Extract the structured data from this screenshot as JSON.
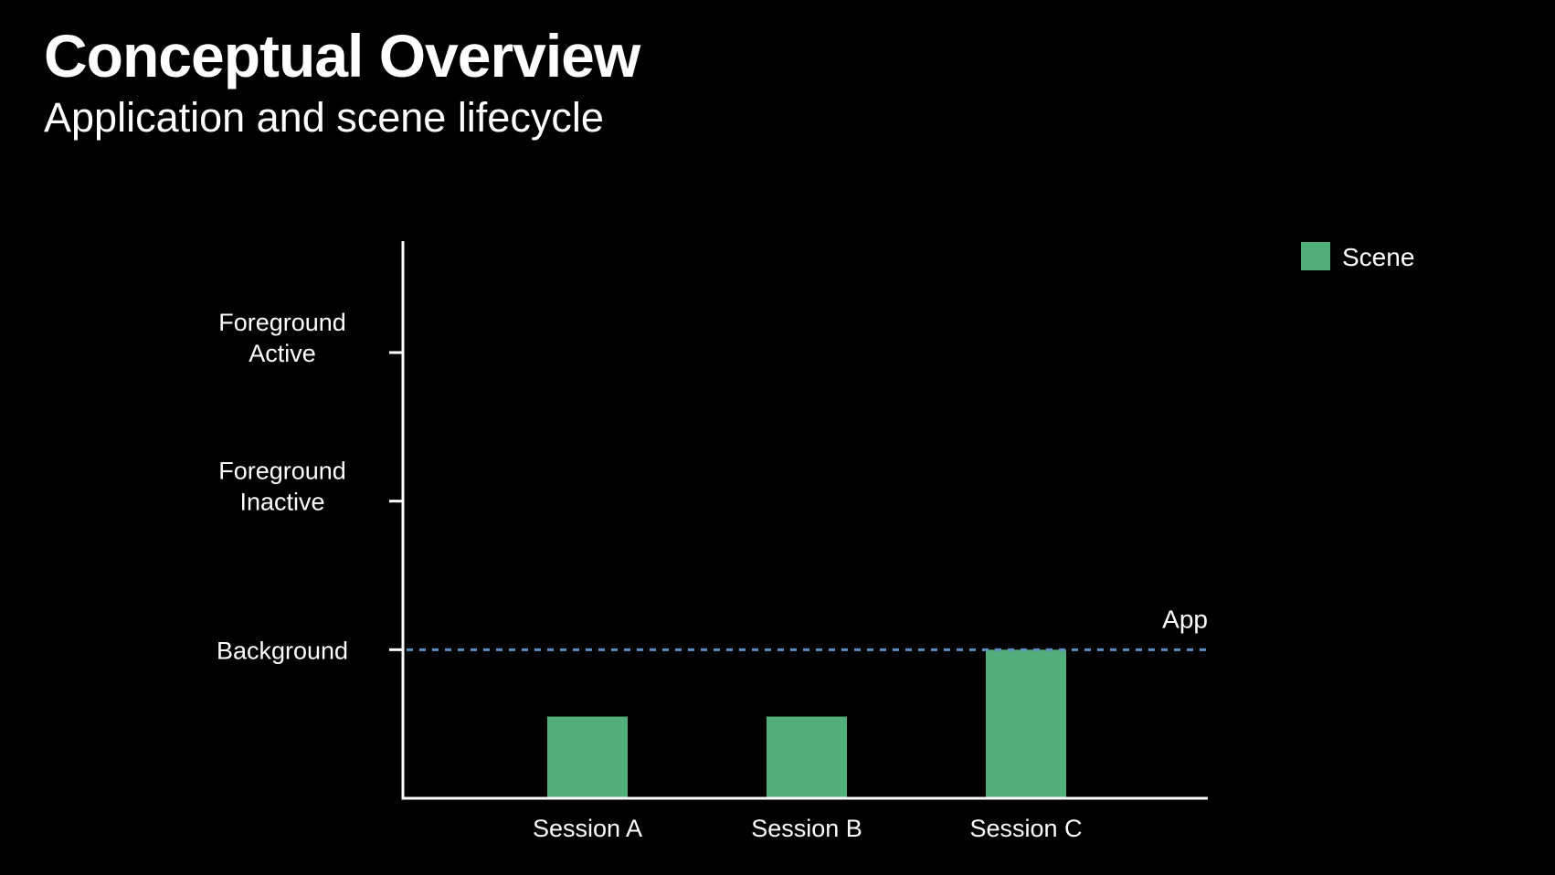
{
  "slide": {
    "title": "Conceptual Overview",
    "subtitle": "Application and scene lifecycle"
  },
  "colors": {
    "background": "#000000",
    "text": "#ffffff",
    "axis": "#ffffff",
    "scene_bar": "#52ae7b",
    "app_line": "#5b8fc4"
  },
  "chart_data": {
    "type": "bar",
    "categories": [
      "Session A",
      "Session B",
      "Session C"
    ],
    "series": [
      {
        "name": "Scene",
        "values": [
          0.55,
          0.55,
          1.0
        ]
      }
    ],
    "y_ticks": [
      {
        "value": 1,
        "lines": [
          "Background"
        ]
      },
      {
        "value": 2,
        "lines": [
          "Foreground",
          "Inactive"
        ]
      },
      {
        "value": 3,
        "lines": [
          "Foreground",
          "Active"
        ]
      }
    ],
    "ylim": [
      0,
      3.75
    ],
    "reference_lines": [
      {
        "label": "App",
        "value": 1,
        "style": "dashed"
      }
    ],
    "legend": {
      "position": "top-right",
      "entries": [
        "Scene"
      ]
    },
    "grid": false
  }
}
